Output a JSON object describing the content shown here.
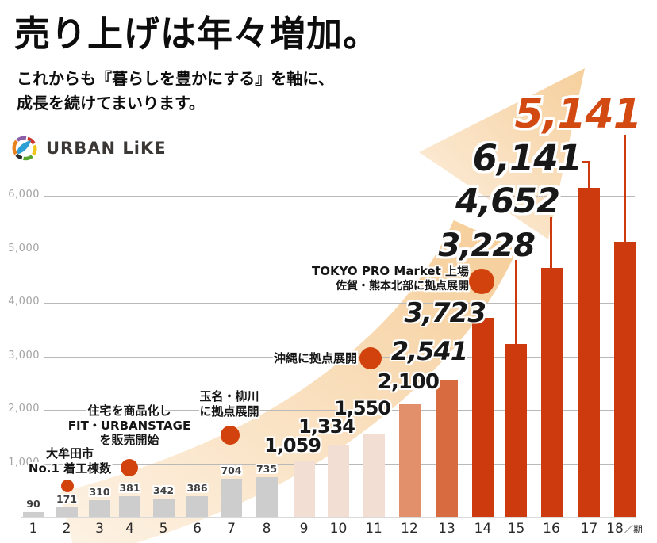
{
  "header": {
    "title": "売り上げは年々増加。",
    "subtitle_line1": "これからも『暮らしを豊かにする』を軸に、",
    "subtitle_line2": "成長を続けてまいります。"
  },
  "brand": {
    "name": "URBAN LiKE"
  },
  "colors": {
    "bar_gray": "#cdcdcd",
    "bar_pale": "#f3ded4",
    "bar_salmon": "#e2906c",
    "bar_mid_orange": "#d86c40",
    "bar_deep_orange": "#cc3a0d",
    "milestone_dot": "#d2420d",
    "highlight_number": "#d24a12",
    "arrow_light": "#fdf1e2",
    "arrow_dark": "#f6cf9c",
    "gridline": "#b9b9b9"
  },
  "chart_data": {
    "type": "bar",
    "title": "売り上げは年々増加。",
    "xlabel": "期",
    "x_axis_suffix": "／期",
    "ylabel": "",
    "ylim": [
      0,
      6500
    ],
    "grid": true,
    "yticks": [
      1000,
      2000,
      3000,
      4000,
      5000,
      6000
    ],
    "ytick_labels": [
      "1,000",
      "2,000",
      "3,000",
      "4,000",
      "5,000",
      "6,000"
    ],
    "categories": [
      "1",
      "2",
      "3",
      "4",
      "5",
      "6",
      "7",
      "8",
      "9",
      "10",
      "11",
      "12",
      "13",
      "14",
      "15",
      "16",
      "17",
      "18"
    ],
    "values": [
      90,
      171,
      310,
      381,
      342,
      386,
      704,
      735,
      1059,
      1334,
      1550,
      2100,
      2541,
      3723,
      3228,
      4652,
      6141,
      5141
    ],
    "value_labels": [
      "90",
      "171",
      "310",
      "381",
      "342",
      "386",
      "704",
      "735",
      "1,059",
      "1,334",
      "1,550",
      "2,100",
      "2,541",
      "3,723",
      "3,228",
      "4,652",
      "6,141",
      "5,141"
    ],
    "annotations": [
      {
        "id": "omuta",
        "period": 2,
        "lines": [
          "大牟田市",
          "No.1 着工棟数"
        ]
      },
      {
        "id": "fit-urbanstage",
        "period": 4,
        "lines": [
          "住宅を商品化し",
          "FIT・URBANSTAGE",
          "を販売開始"
        ]
      },
      {
        "id": "tamana-yanagawa",
        "period": 7,
        "lines": [
          "玉名・柳川",
          "に拠点展開"
        ]
      },
      {
        "id": "okinawa",
        "period": 11,
        "lines": [
          "沖縄に拠点展開"
        ]
      },
      {
        "id": "tokyo-pro-market",
        "period": 14,
        "lines": [
          "TOKYO PRO Market 上場",
          "佐賀・熊本北部に拠点展開"
        ]
      }
    ]
  }
}
